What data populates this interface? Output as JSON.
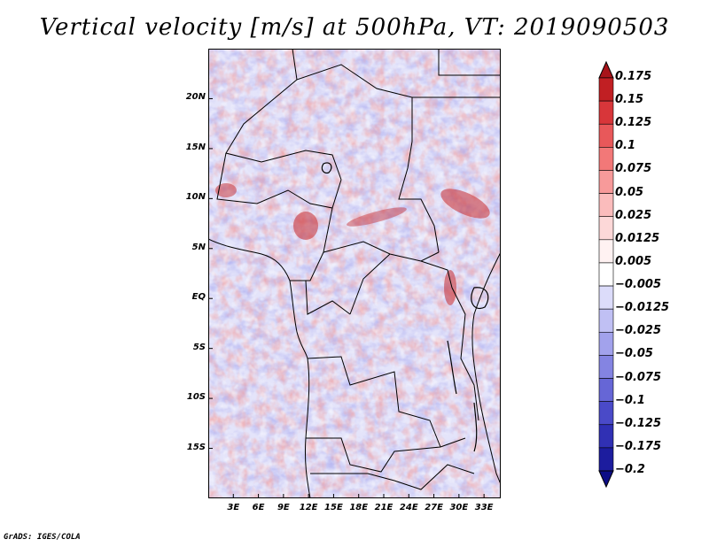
{
  "title": "Vertical velocity [m/s] at 500hPa, VT: 2019090503",
  "footer": "GrADS: IGES/COLA",
  "map": {
    "lat_range": [
      -20,
      25
    ],
    "lon_range": [
      0,
      35
    ],
    "y_ticks": [
      {
        "label": "20N",
        "value": 20
      },
      {
        "label": "15N",
        "value": 15
      },
      {
        "label": "10N",
        "value": 10
      },
      {
        "label": "5N",
        "value": 5
      },
      {
        "label": "EQ",
        "value": 0
      },
      {
        "label": "5S",
        "value": -5
      },
      {
        "label": "10S",
        "value": -10
      },
      {
        "label": "15S",
        "value": -15
      }
    ],
    "x_ticks": [
      {
        "label": "3E",
        "value": 3
      },
      {
        "label": "6E",
        "value": 6
      },
      {
        "label": "9E",
        "value": 9
      },
      {
        "label": "12E",
        "value": 12
      },
      {
        "label": "15E",
        "value": 15
      },
      {
        "label": "18E",
        "value": 18
      },
      {
        "label": "21E",
        "value": 21
      },
      {
        "label": "24E",
        "value": 24
      },
      {
        "label": "27E",
        "value": 27
      },
      {
        "label": "30E",
        "value": 30
      },
      {
        "label": "33E",
        "value": 33
      }
    ]
  },
  "colorbar": {
    "labels": [
      "0.175",
      "0.15",
      "0.125",
      "0.1",
      "0.075",
      "0.05",
      "0.025",
      "0.0125",
      "0.005",
      "−0.005",
      "−0.0125",
      "−0.025",
      "−0.05",
      "−0.075",
      "−0.1",
      "−0.125",
      "−0.175",
      "−0.2"
    ],
    "colors": [
      "#a8141a",
      "#c11f23",
      "#d8363a",
      "#e8585a",
      "#f27878",
      "#f79a9a",
      "#fbbcbc",
      "#fdd8d8",
      "#fff2f2",
      "#ffffff",
      "#dcdcfa",
      "#c0c0f4",
      "#a2a2ec",
      "#8484e2",
      "#6666d6",
      "#4a4ac8",
      "#3030b4",
      "#1c1c9e",
      "#0c0c86"
    ]
  }
}
